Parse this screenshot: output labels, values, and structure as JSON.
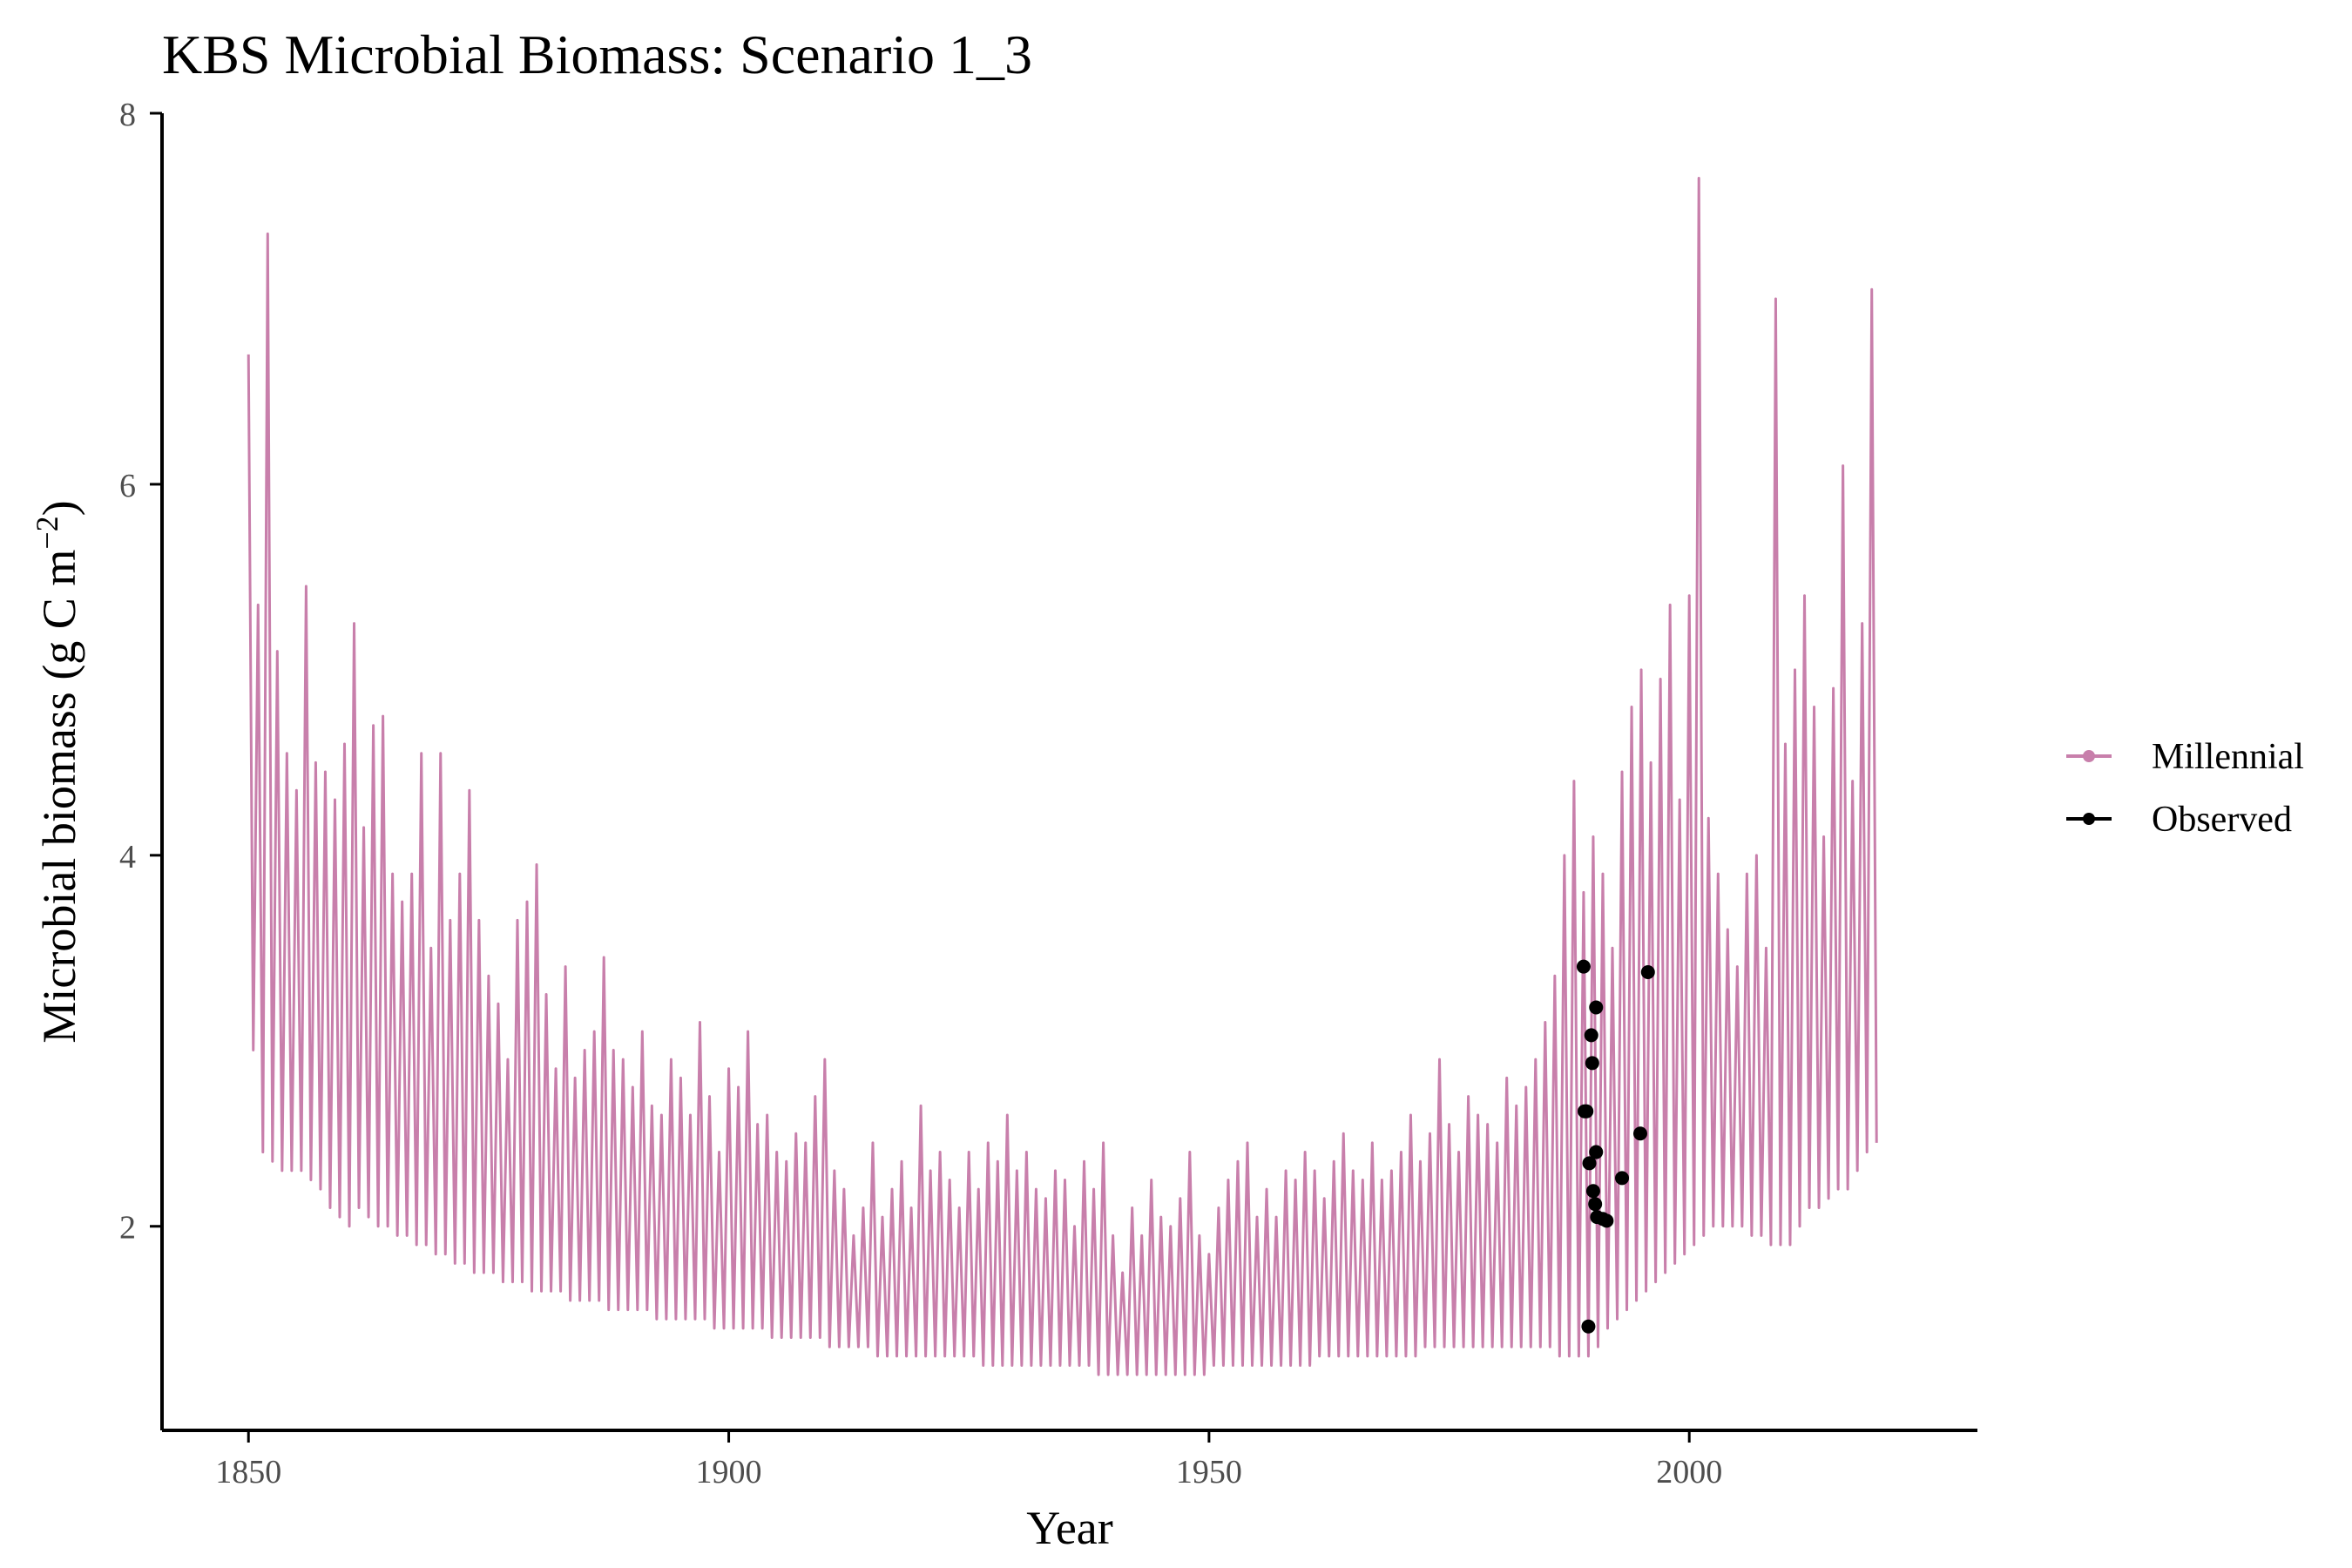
{
  "chart_data": {
    "type": "line",
    "title": "KBS Microbial Biomass: Scenario  1_3",
    "xlabel": "Year",
    "ylabel_prefix": "Microbial biomass (g C m",
    "ylabel_superscript": "−2",
    "ylabel_suffix": ")",
    "xlim": [
      1841,
      2030
    ],
    "ylim": [
      0.9,
      8
    ],
    "xticks": [
      1850,
      1900,
      1950,
      2000
    ],
    "xtick_labels": [
      "1850",
      "1900",
      "1950",
      "2000"
    ],
    "yticks": [
      2,
      4,
      6,
      8
    ],
    "ytick_labels": [
      "2",
      "4",
      "6",
      "8"
    ],
    "grid": false,
    "legend_position": "right",
    "colors": {
      "millennial": "#c87fab",
      "observed": "#000000",
      "axis": "#000000"
    },
    "series": [
      {
        "name": "Millennial",
        "kind": "line",
        "x_start": 1850,
        "x_step": 0.5,
        "peaks": [
          6.7,
          5.35,
          7.35,
          5.1,
          4.55,
          4.35,
          5.45,
          4.5,
          4.45,
          4.3,
          4.6,
          5.25,
          4.15,
          4.7,
          4.75,
          3.9,
          3.75,
          3.9,
          4.55,
          3.5,
          4.55,
          3.65,
          3.9,
          4.35,
          3.65,
          3.35,
          3.2,
          2.9,
          3.65,
          3.75,
          3.95,
          3.25,
          2.85,
          3.4,
          2.8,
          2.95,
          3.05,
          3.45,
          2.95,
          2.9,
          2.75,
          3.05,
          2.65,
          2.6,
          2.9,
          2.8,
          2.6,
          3.1,
          2.7,
          2.4,
          2.85,
          2.75,
          3.05,
          2.55,
          2.6,
          2.4,
          2.35,
          2.5,
          2.45,
          2.7,
          2.9,
          2.3,
          2.2,
          1.95,
          2.1,
          2.45,
          2.05,
          2.2,
          2.35,
          2.1,
          2.65,
          2.3,
          2.4,
          2.25,
          2.1,
          2.4,
          2.2,
          2.45,
          2.35,
          2.6,
          2.3,
          2.4,
          2.2,
          2.15,
          2.3,
          2.25,
          2.0,
          2.35,
          2.2,
          2.45,
          1.95,
          1.75,
          2.1,
          1.95,
          2.25,
          2.05,
          2.0,
          2.15,
          2.4,
          1.95,
          1.85,
          2.1,
          2.25,
          2.35,
          2.45,
          2.05,
          2.2,
          2.05,
          2.3,
          2.25,
          2.4,
          2.3,
          2.15,
          2.35,
          2.5,
          2.3,
          2.25,
          2.45,
          2.25,
          2.3,
          2.4,
          2.6,
          2.35,
          2.5,
          2.9,
          2.55,
          2.4,
          2.7,
          2.6,
          2.55,
          2.45,
          2.8,
          2.65,
          2.75,
          2.9,
          3.1,
          3.35,
          4.0,
          4.4,
          3.8,
          4.1,
          3.9,
          3.5,
          4.45,
          4.8,
          5.0,
          4.5,
          4.95,
          5.35,
          4.3,
          5.4,
          7.65,
          4.2,
          3.9,
          3.6,
          3.4,
          3.9,
          4.0,
          3.5,
          7.0,
          4.6,
          5.0,
          5.4,
          4.8,
          4.1,
          4.9,
          6.1,
          4.4,
          5.25,
          7.05
        ],
        "troughs": [
          2.95,
          2.4,
          2.35,
          2.3,
          2.3,
          2.3,
          2.25,
          2.2,
          2.1,
          2.05,
          2.0,
          2.1,
          2.05,
          2.0,
          2.0,
          1.95,
          1.95,
          1.9,
          1.9,
          1.85,
          1.85,
          1.8,
          1.8,
          1.75,
          1.75,
          1.75,
          1.7,
          1.7,
          1.7,
          1.65,
          1.65,
          1.65,
          1.65,
          1.6,
          1.6,
          1.6,
          1.6,
          1.55,
          1.55,
          1.55,
          1.55,
          1.55,
          1.5,
          1.5,
          1.5,
          1.5,
          1.5,
          1.5,
          1.45,
          1.45,
          1.45,
          1.45,
          1.45,
          1.45,
          1.4,
          1.4,
          1.4,
          1.4,
          1.4,
          1.4,
          1.35,
          1.35,
          1.35,
          1.35,
          1.35,
          1.3,
          1.3,
          1.3,
          1.3,
          1.3,
          1.3,
          1.3,
          1.3,
          1.3,
          1.3,
          1.3,
          1.25,
          1.25,
          1.25,
          1.25,
          1.25,
          1.25,
          1.25,
          1.25,
          1.25,
          1.25,
          1.25,
          1.25,
          1.2,
          1.2,
          1.2,
          1.2,
          1.2,
          1.2,
          1.2,
          1.2,
          1.2,
          1.2,
          1.2,
          1.2,
          1.25,
          1.25,
          1.25,
          1.25,
          1.25,
          1.25,
          1.25,
          1.25,
          1.25,
          1.25,
          1.25,
          1.3,
          1.3,
          1.3,
          1.3,
          1.3,
          1.3,
          1.3,
          1.3,
          1.3,
          1.3,
          1.3,
          1.35,
          1.35,
          1.35,
          1.35,
          1.35,
          1.35,
          1.35,
          1.35,
          1.35,
          1.35,
          1.35,
          1.35,
          1.35,
          1.35,
          1.3,
          1.3,
          1.3,
          1.3,
          1.35,
          1.45,
          1.5,
          1.55,
          1.6,
          1.65,
          1.7,
          1.75,
          1.8,
          1.85,
          1.9,
          1.95,
          2.0,
          2.0,
          2.0,
          2.0,
          1.95,
          1.95,
          1.9,
          1.9,
          1.9,
          2.0,
          2.1,
          2.1,
          2.15,
          2.2,
          2.2,
          2.3,
          2.4,
          2.45,
          2.5,
          2.5
        ]
      },
      {
        "name": "Observed",
        "kind": "points",
        "points": [
          [
            1989.0,
            3.4
          ],
          [
            1990.3,
            3.18
          ],
          [
            1989.8,
            3.03
          ],
          [
            1995.7,
            3.37
          ],
          [
            1989.9,
            2.88
          ],
          [
            1989.1,
            2.62
          ],
          [
            1989.3,
            2.62
          ],
          [
            1994.9,
            2.5
          ],
          [
            1990.3,
            2.4
          ],
          [
            1989.6,
            2.34
          ],
          [
            1993.0,
            2.26
          ],
          [
            1990.0,
            2.19
          ],
          [
            1990.2,
            2.12
          ],
          [
            1990.4,
            2.05
          ],
          [
            1991.0,
            2.04
          ],
          [
            1991.4,
            2.03
          ],
          [
            1989.5,
            1.46
          ]
        ]
      }
    ]
  }
}
